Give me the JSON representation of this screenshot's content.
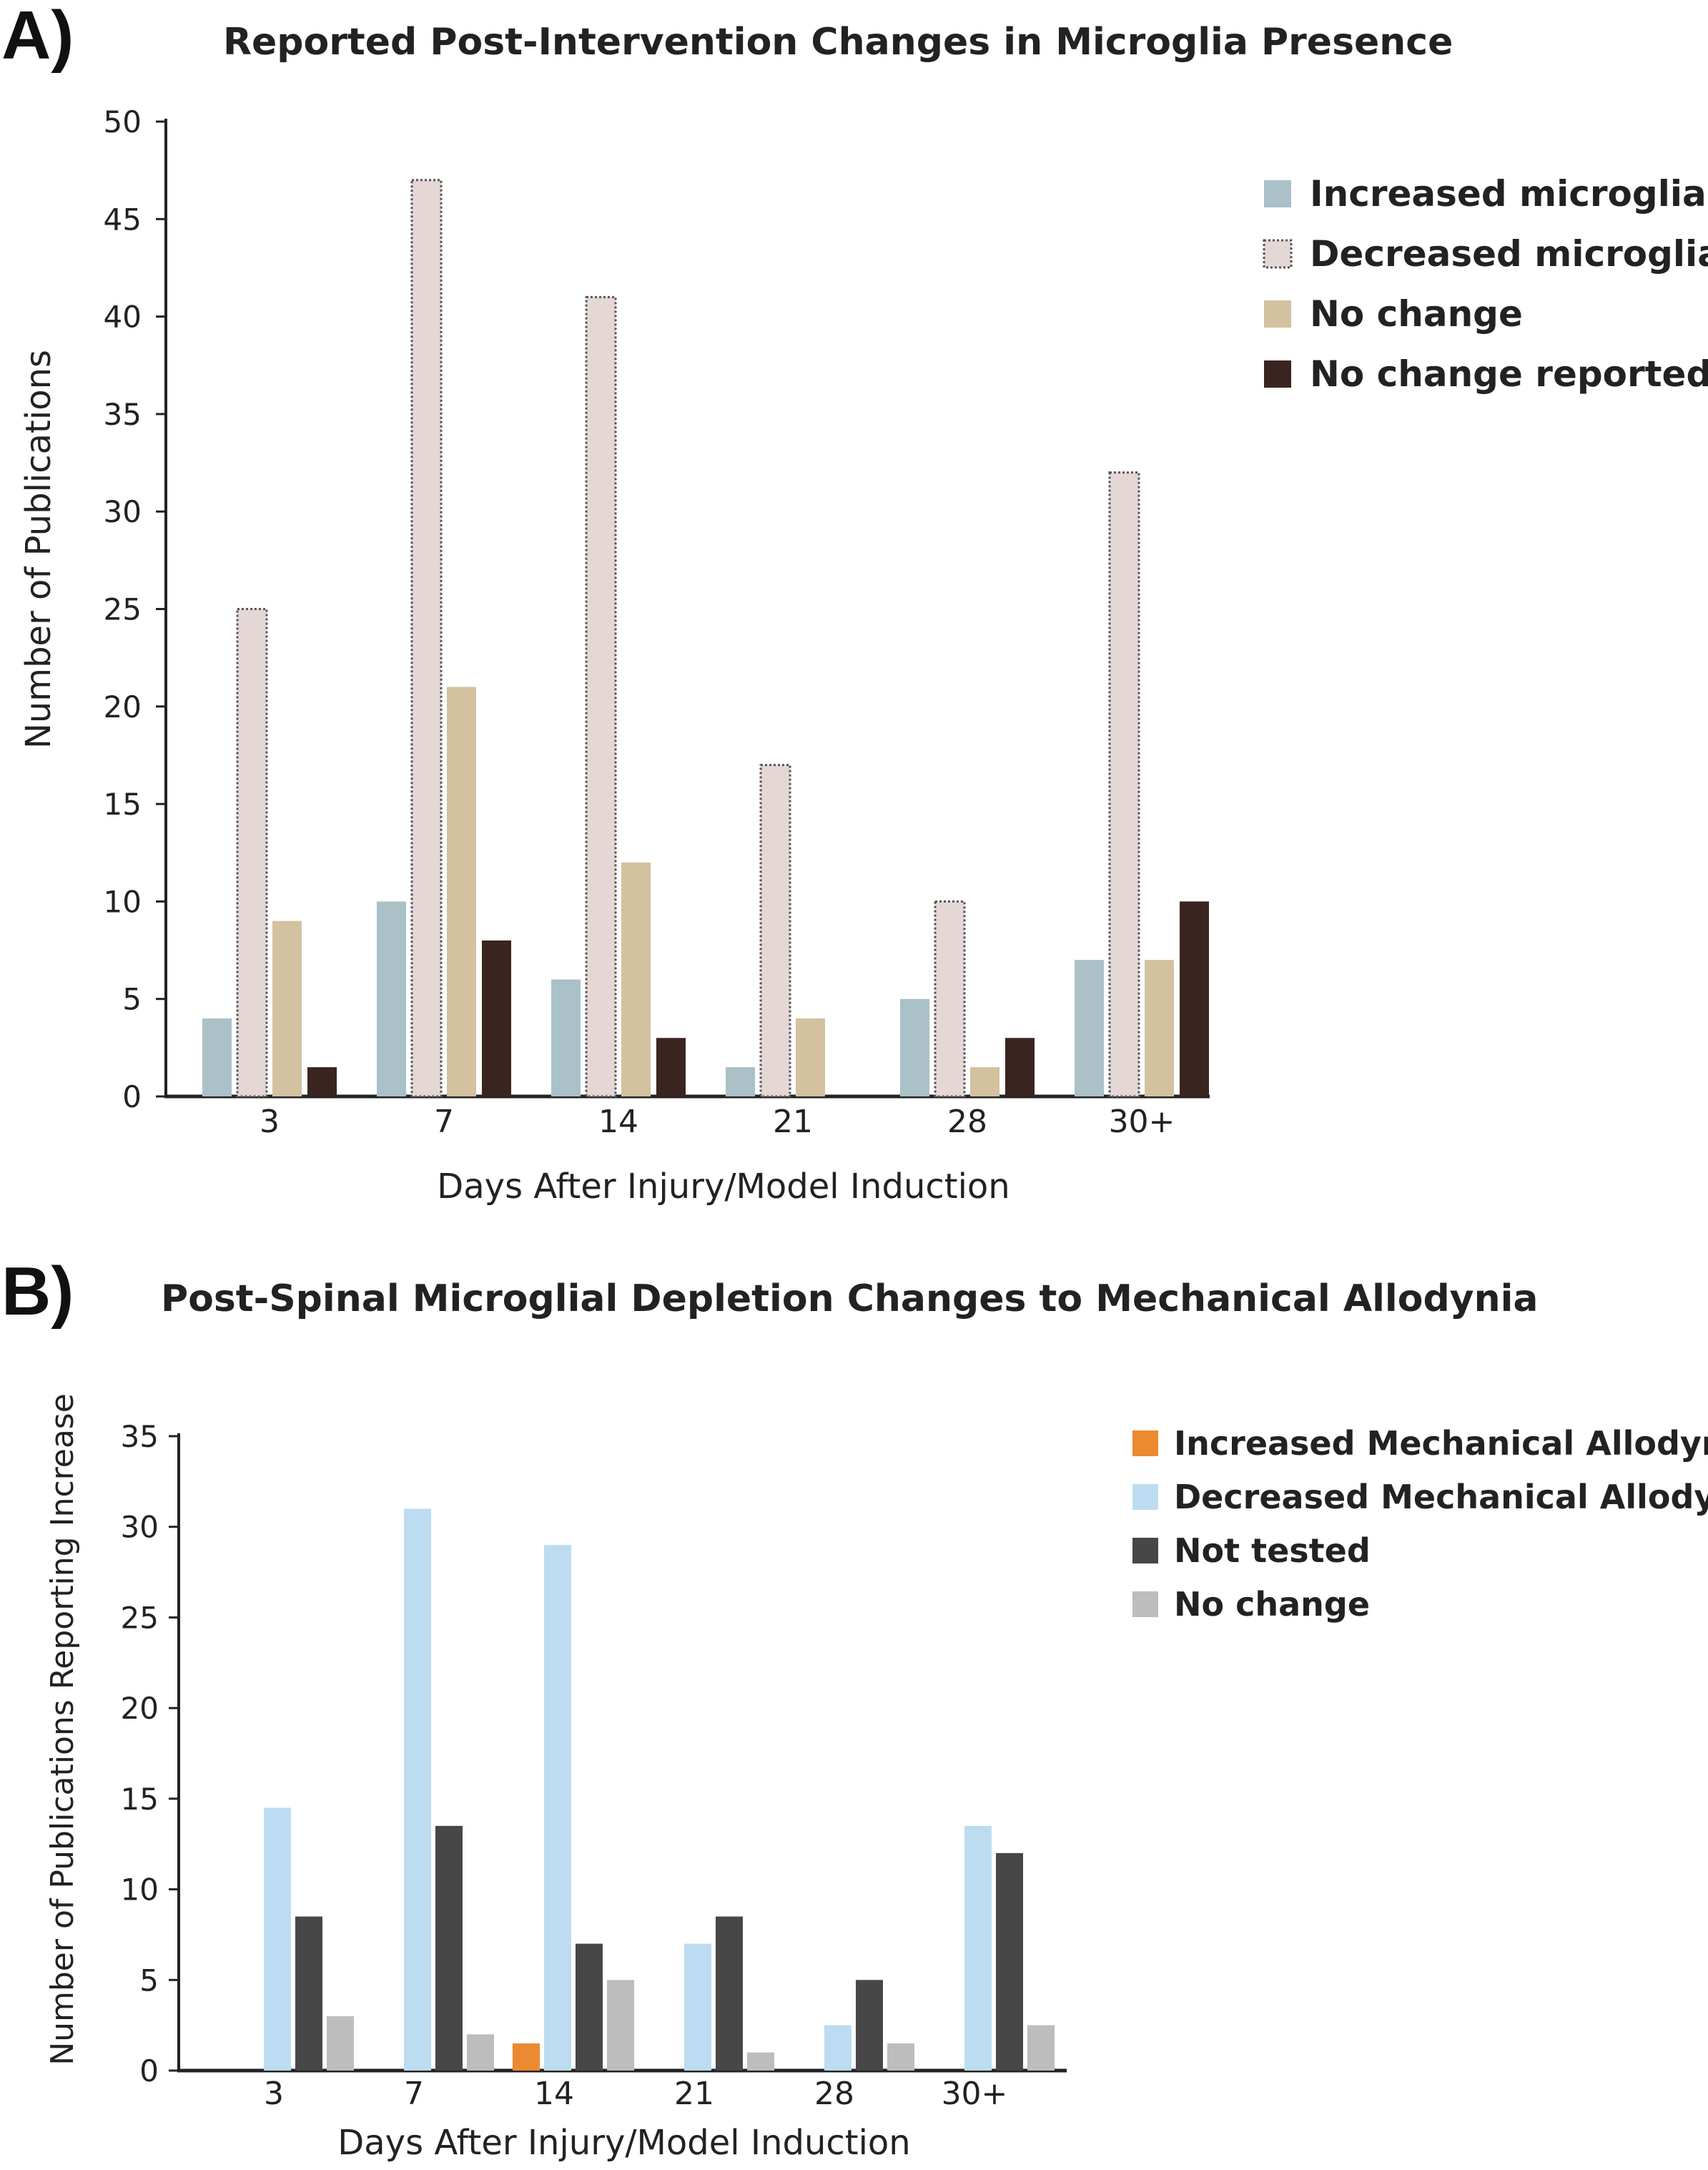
{
  "panel_a": {
    "letter": "A)"
  },
  "panel_b": {
    "letter": "B)"
  },
  "chart_data": [
    {
      "type": "bar",
      "title": "Reported Post-Intervention Changes in Microglia Presence",
      "xlabel": "Days After Injury/Model Induction",
      "ylabel": "Number of Publications",
      "categories": [
        "3",
        "7",
        "14",
        "21",
        "28",
        "30+"
      ],
      "ylim": [
        0,
        50
      ],
      "yticks": [
        0,
        5,
        10,
        15,
        20,
        25,
        30,
        35,
        40,
        45,
        50
      ],
      "legend_position": "top-right",
      "series": [
        {
          "name": "Increased microglia",
          "color": "#a9c1c7",
          "values": [
            4,
            10,
            6,
            1.5,
            5,
            7
          ]
        },
        {
          "name": "Decreased microglia",
          "color": "#e4d7d5",
          "dashed_border": true,
          "values": [
            25,
            47,
            41,
            17,
            10,
            32
          ]
        },
        {
          "name": "No change",
          "color": "#d3c1a0",
          "values": [
            9,
            21,
            12,
            4,
            1.5,
            7
          ]
        },
        {
          "name": "No change reported",
          "color": "#3a2420",
          "values": [
            1.5,
            8,
            3,
            0,
            3,
            10
          ]
        }
      ]
    },
    {
      "type": "bar",
      "title": "Post-Spinal Microglial Depletion Changes to Mechanical Allodynia",
      "xlabel": "Days After Injury/Model Induction",
      "ylabel": "Number of Publications Reporting Increase",
      "categories": [
        "3",
        "7",
        "14",
        "21",
        "28",
        "30+"
      ],
      "ylim": [
        0,
        35
      ],
      "yticks": [
        0,
        5,
        10,
        15,
        20,
        25,
        30,
        35
      ],
      "legend_position": "top-right",
      "series": [
        {
          "name": "Increased Mechanical Allodynia",
          "color": "#ec8a32",
          "values": [
            0,
            0,
            1.5,
            0,
            0,
            0
          ]
        },
        {
          "name": "Decreased Mechanical Allodynia",
          "color": "#bddcf1",
          "values": [
            14.5,
            31,
            29,
            7,
            2.5,
            13.5
          ]
        },
        {
          "name": "Not tested",
          "color": "#474747",
          "values": [
            8.5,
            13.5,
            7,
            8.5,
            5,
            12
          ]
        },
        {
          "name": "No change",
          "color": "#bdbdbd",
          "values": [
            3,
            2,
            5,
            1,
            1.5,
            2.5
          ]
        }
      ]
    }
  ]
}
